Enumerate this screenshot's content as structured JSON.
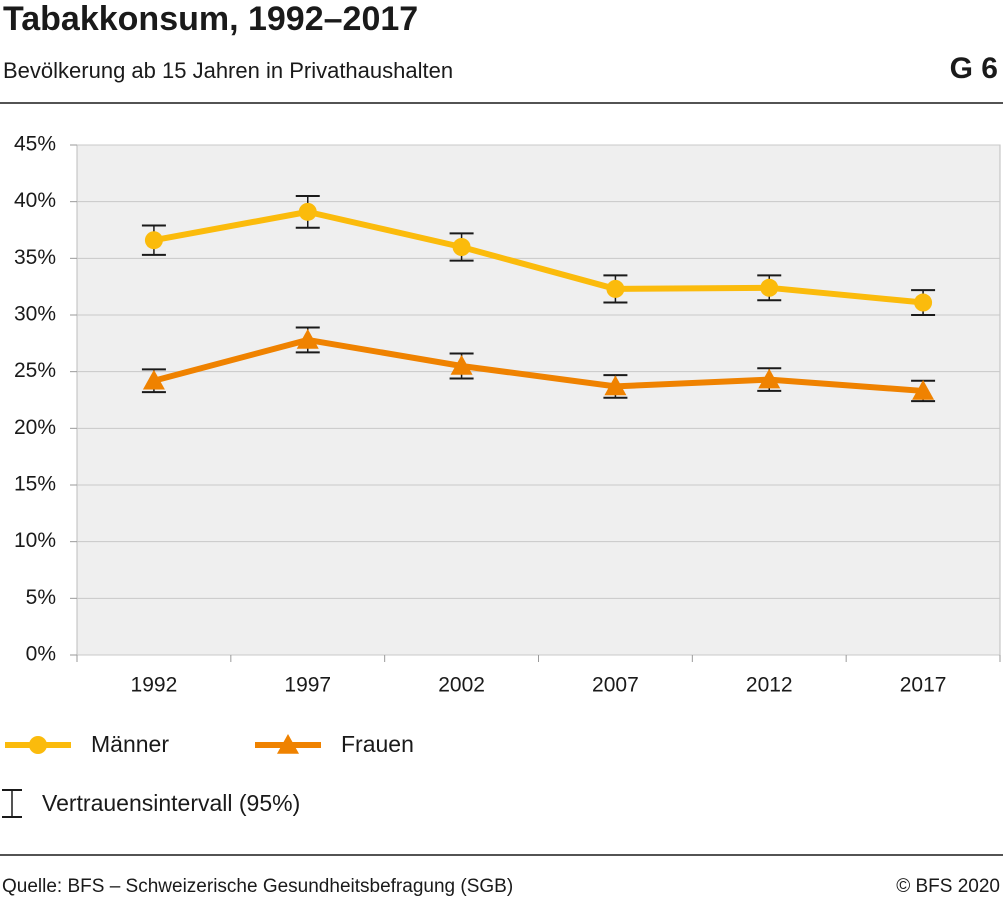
{
  "chart_data": {
    "type": "line",
    "title": "Tabakkonsum, 1992–2017",
    "subtitle": "Bevölkerung ab 15 Jahren in Privathaushalten",
    "figure_label": "G 6",
    "categories": [
      "1992",
      "1997",
      "2002",
      "2007",
      "2012",
      "2017"
    ],
    "series": [
      {
        "name": "Männer",
        "color": "#fbbb0c",
        "marker": "circle",
        "values": [
          36.6,
          39.1,
          36.0,
          32.3,
          32.4,
          31.1
        ],
        "errors": [
          1.3,
          1.4,
          1.2,
          1.2,
          1.1,
          1.1
        ]
      },
      {
        "name": "Frauen",
        "color": "#ef8200",
        "marker": "triangle",
        "values": [
          24.2,
          27.8,
          25.5,
          23.7,
          24.3,
          23.3
        ],
        "errors": [
          1.0,
          1.1,
          1.1,
          1.0,
          1.0,
          0.9
        ]
      }
    ],
    "ylim": [
      0,
      45
    ],
    "yticks": [
      {
        "value": 0,
        "label": "0%"
      },
      {
        "value": 5,
        "label": "5%"
      },
      {
        "value": 10,
        "label": "10%"
      },
      {
        "value": 15,
        "label": "15%"
      },
      {
        "value": 20,
        "label": "20%"
      },
      {
        "value": 25,
        "label": "25%"
      },
      {
        "value": 30,
        "label": "30%"
      },
      {
        "value": 35,
        "label": "35%"
      },
      {
        "value": 40,
        "label": "40%"
      },
      {
        "value": 45,
        "label": "45%"
      }
    ],
    "grid": true,
    "error_bar_label": "Vertrauensintervall (95%)",
    "source": "Quelle: BFS – Schweizerische Gesundheitsbefragung (SGB)",
    "copyright": "© BFS 2020"
  }
}
